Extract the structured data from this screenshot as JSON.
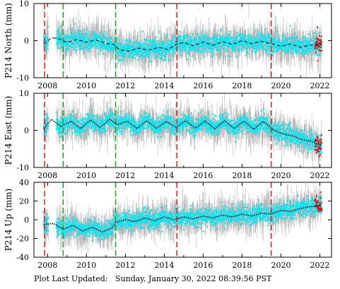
{
  "footer": {
    "prefix": "Plot Last Updated:",
    "date": "Sunday, January 30, 2022 08:39:56 PST"
  },
  "colors": {
    "raw": "#b4b4b4",
    "daily": "#00e8f6",
    "recent": "#e00000",
    "model": "#000000",
    "event_red": "#e02020",
    "event_green": "#20a020"
  },
  "chart_data": [
    {
      "type": "scatter",
      "title": "",
      "ylabel": "P214 North (mm)",
      "xlim": [
        2007.3,
        2022.6
      ],
      "ylim": [
        -10,
        10
      ],
      "xticks": [
        2008,
        2010,
        2012,
        2014,
        2016,
        2018,
        2020,
        2022
      ],
      "yticks": [
        -10,
        0,
        10
      ],
      "event_lines": [
        {
          "x": 2007.85,
          "kind": "red"
        },
        {
          "x": 2008.8,
          "kind": "green"
        },
        {
          "x": 2011.5,
          "kind": "green"
        },
        {
          "x": 2014.65,
          "kind": "red"
        },
        {
          "x": 2019.5,
          "kind": "red"
        }
      ],
      "model": {
        "x": [
          2007.8,
          2008.2,
          2008.6,
          2009.0,
          2009.5,
          2010.0,
          2010.5,
          2011.0,
          2011.4,
          2011.7,
          2012.2,
          2012.7,
          2013.2,
          2013.7,
          2014.2,
          2014.6,
          2015.0,
          2015.5,
          2016.0,
          2016.5,
          2017.0,
          2017.5,
          2018.0,
          2018.5,
          2019.0,
          2019.5,
          2020.0,
          2020.5,
          2021.0,
          2021.5,
          2022.0
        ],
        "y": [
          -1.0,
          0.8,
          0.5,
          -0.5,
          0.3,
          -0.4,
          0.2,
          -0.8,
          -1.0,
          -2.5,
          -2.8,
          -2.0,
          -2.6,
          -1.8,
          -2.4,
          -1.0,
          -0.5,
          -1.4,
          -0.4,
          -1.2,
          -0.3,
          -1.0,
          0.0,
          -0.8,
          -0.2,
          -0.8,
          -1.5,
          -0.9,
          -1.8,
          -1.2,
          -1.0
        ]
      },
      "noise": {
        "raw": 3.2,
        "daily": 1.6
      }
    },
    {
      "type": "scatter",
      "title": "",
      "ylabel": "P214 East (mm)",
      "xlim": [
        2007.3,
        2022.6
      ],
      "ylim": [
        -10,
        10
      ],
      "xticks": [
        2008,
        2010,
        2012,
        2014,
        2016,
        2018,
        2020,
        2022
      ],
      "yticks": [
        -10,
        0,
        10
      ],
      "event_lines": [
        {
          "x": 2007.85,
          "kind": "red"
        },
        {
          "x": 2008.8,
          "kind": "green"
        },
        {
          "x": 2011.5,
          "kind": "green"
        },
        {
          "x": 2014.65,
          "kind": "red"
        },
        {
          "x": 2019.5,
          "kind": "red"
        }
      ],
      "model": {
        "x": [
          2007.8,
          2008.2,
          2008.7,
          2009.2,
          2009.7,
          2010.2,
          2010.7,
          2011.2,
          2011.6,
          2012.1,
          2012.6,
          2013.1,
          2013.6,
          2014.1,
          2014.6,
          2015.1,
          2015.6,
          2016.1,
          2016.6,
          2017.1,
          2017.6,
          2018.1,
          2018.6,
          2019.1,
          2019.6,
          2020.1,
          2020.6,
          2021.1,
          2021.6,
          2022.0
        ],
        "y": [
          0.5,
          3.0,
          1.0,
          2.5,
          0.5,
          2.8,
          0.8,
          3.0,
          1.5,
          2.5,
          0.5,
          2.6,
          0.6,
          2.4,
          0.8,
          2.6,
          0.6,
          2.5,
          0.4,
          2.6,
          0.5,
          2.5,
          0.3,
          2.4,
          0.2,
          -1.0,
          -1.5,
          -2.5,
          -3.0,
          -4.0
        ]
      },
      "noise": {
        "raw": 3.0,
        "daily": 1.5
      }
    },
    {
      "type": "scatter",
      "title": "",
      "ylabel": "P214 Up (mm)",
      "xlim": [
        2007.3,
        2022.6
      ],
      "ylim": [
        -40,
        40
      ],
      "xticks": [
        2008,
        2010,
        2012,
        2014,
        2016,
        2018,
        2020,
        2022
      ],
      "yticks": [
        -40,
        -20,
        0,
        20,
        40
      ],
      "event_lines": [
        {
          "x": 2007.85,
          "kind": "red"
        },
        {
          "x": 2008.8,
          "kind": "green"
        },
        {
          "x": 2011.5,
          "kind": "green"
        },
        {
          "x": 2014.65,
          "kind": "red"
        },
        {
          "x": 2019.5,
          "kind": "red"
        }
      ],
      "model": {
        "x": [
          2007.8,
          2008.3,
          2008.8,
          2009.3,
          2009.8,
          2010.3,
          2010.8,
          2011.3,
          2011.5,
          2012.0,
          2012.5,
          2013.0,
          2013.5,
          2014.0,
          2014.5,
          2015.0,
          2015.5,
          2016.0,
          2016.5,
          2017.0,
          2017.5,
          2018.0,
          2018.5,
          2019.0,
          2019.5,
          2020.0,
          2020.5,
          2021.0,
          2021.5,
          2022.0
        ],
        "y": [
          -5,
          -4,
          -10,
          -6,
          -12,
          -8,
          -13,
          -9,
          -3,
          0,
          -2,
          2,
          -1,
          3,
          0,
          3,
          1,
          4,
          2,
          5,
          3,
          6,
          4,
          7,
          6,
          10,
          9,
          12,
          14,
          15
        ]
      },
      "noise": {
        "raw": 12.0,
        "daily": 6.0
      }
    }
  ]
}
